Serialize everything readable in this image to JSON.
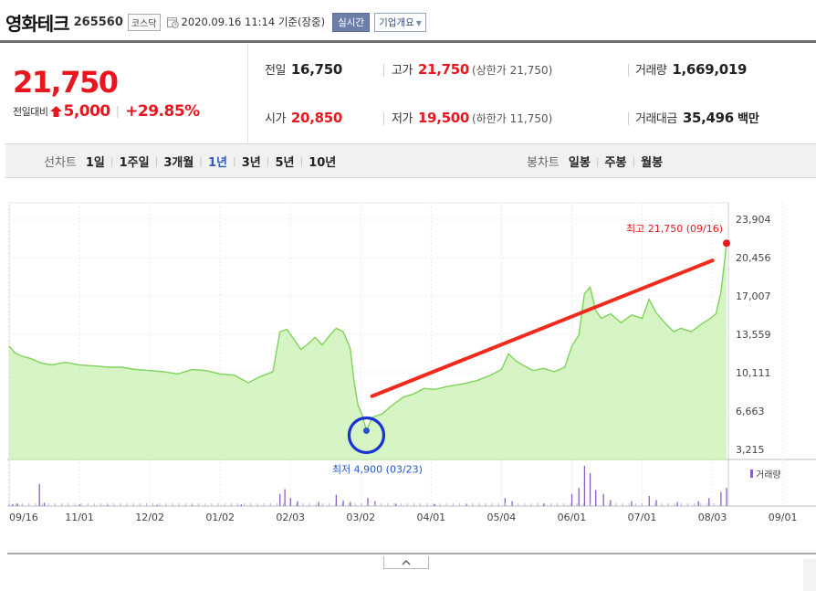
{
  "stock": {
    "name": "영화테크",
    "code": "265560",
    "market": "코스닥",
    "datetime": "2020.09.16 11:14",
    "basis": "기준(장중)",
    "realtime_label": "실시간",
    "overview_label": "기업개요"
  },
  "price": {
    "current": "21,750",
    "change_label": "전일대비",
    "change_value": "5,000",
    "change_pct": "+29.85%"
  },
  "details": {
    "prev_label": "전일",
    "prev_value": "16,750",
    "high_label": "고가",
    "high_value": "21,750",
    "high_note": "(상한가 21,750)",
    "volume_label": "거래량",
    "volume_value": "1,669,019",
    "open_label": "시가",
    "open_value": "20,850",
    "low_label": "저가",
    "low_value": "19,500",
    "low_note": "(하한가 11,750)",
    "amount_label": "거래대금",
    "amount_value": "35,496",
    "amount_unit": "백만"
  },
  "line_tabs": {
    "title": "선차트",
    "items": [
      "1일",
      "1주일",
      "3개월",
      "1년",
      "3년",
      "5년",
      "10년"
    ],
    "active": "1년"
  },
  "candle_tabs": {
    "title": "봉차트",
    "items": [
      "일봉",
      "주봉",
      "월봉"
    ]
  },
  "colors": {
    "up": "#e8171f",
    "area_line": "#7ed35a",
    "area_fill": "#c9f0b0",
    "link_blue": "#3359c4",
    "highlight_circle": "#1733d6",
    "drawn_line": "#f02a1c"
  },
  "chart_data": {
    "type": "area",
    "y_ticks": [
      "23,904",
      "20,456",
      "17,007",
      "13,559",
      "10,111",
      "6,663",
      "3,215"
    ],
    "ylim": [
      3215,
      23904
    ],
    "x_ticks": [
      "09/16",
      "11/01",
      "12/02",
      "01/02",
      "02/03",
      "03/02",
      "04/01",
      "05/04",
      "06/01",
      "07/01",
      "08/03",
      "09/01"
    ],
    "max_annotation": "최고 21,750 (09/16)",
    "min_annotation": "최저 4,900 (03/23)",
    "volume_legend": "거래량",
    "price_series": [
      {
        "x": 0.0,
        "y": 12500
      },
      {
        "x": 0.08,
        "y": 11900
      },
      {
        "x": 0.18,
        "y": 11600
      },
      {
        "x": 0.3,
        "y": 11400
      },
      {
        "x": 0.45,
        "y": 11000
      },
      {
        "x": 0.6,
        "y": 10800
      },
      {
        "x": 0.8,
        "y": 11050
      },
      {
        "x": 1.0,
        "y": 10800
      },
      {
        "x": 1.25,
        "y": 10700
      },
      {
        "x": 1.4,
        "y": 10600
      },
      {
        "x": 1.6,
        "y": 10600
      },
      {
        "x": 1.8,
        "y": 10400
      },
      {
        "x": 2.0,
        "y": 10300
      },
      {
        "x": 2.2,
        "y": 10200
      },
      {
        "x": 2.4,
        "y": 10000
      },
      {
        "x": 2.6,
        "y": 10400
      },
      {
        "x": 2.8,
        "y": 10300
      },
      {
        "x": 3.0,
        "y": 10000
      },
      {
        "x": 3.2,
        "y": 9900
      },
      {
        "x": 3.4,
        "y": 9200
      },
      {
        "x": 3.55,
        "y": 9700
      },
      {
        "x": 3.75,
        "y": 10200
      },
      {
        "x": 3.85,
        "y": 13800
      },
      {
        "x": 3.95,
        "y": 14000
      },
      {
        "x": 4.05,
        "y": 13100
      },
      {
        "x": 4.15,
        "y": 12200
      },
      {
        "x": 4.25,
        "y": 12700
      },
      {
        "x": 4.35,
        "y": 13300
      },
      {
        "x": 4.45,
        "y": 12600
      },
      {
        "x": 4.55,
        "y": 13400
      },
      {
        "x": 4.65,
        "y": 14100
      },
      {
        "x": 4.75,
        "y": 13800
      },
      {
        "x": 4.85,
        "y": 12300
      },
      {
        "x": 4.9,
        "y": 9500
      },
      {
        "x": 4.96,
        "y": 7200
      },
      {
        "x": 5.02,
        "y": 6300
      },
      {
        "x": 5.08,
        "y": 4900
      },
      {
        "x": 5.16,
        "y": 6100
      },
      {
        "x": 5.3,
        "y": 6400
      },
      {
        "x": 5.45,
        "y": 7200
      },
      {
        "x": 5.6,
        "y": 7900
      },
      {
        "x": 5.75,
        "y": 8200
      },
      {
        "x": 5.9,
        "y": 8700
      },
      {
        "x": 6.05,
        "y": 8600
      },
      {
        "x": 6.25,
        "y": 8900
      },
      {
        "x": 6.45,
        "y": 9100
      },
      {
        "x": 6.65,
        "y": 9400
      },
      {
        "x": 6.85,
        "y": 9900
      },
      {
        "x": 7.0,
        "y": 10400
      },
      {
        "x": 7.1,
        "y": 11800
      },
      {
        "x": 7.2,
        "y": 11200
      },
      {
        "x": 7.3,
        "y": 10800
      },
      {
        "x": 7.45,
        "y": 10300
      },
      {
        "x": 7.6,
        "y": 10500
      },
      {
        "x": 7.75,
        "y": 10200
      },
      {
        "x": 7.9,
        "y": 10600
      },
      {
        "x": 8.0,
        "y": 12500
      },
      {
        "x": 8.1,
        "y": 13500
      },
      {
        "x": 8.18,
        "y": 17200
      },
      {
        "x": 8.26,
        "y": 17800
      },
      {
        "x": 8.34,
        "y": 15700
      },
      {
        "x": 8.42,
        "y": 15000
      },
      {
        "x": 8.55,
        "y": 15400
      },
      {
        "x": 8.7,
        "y": 14600
      },
      {
        "x": 8.85,
        "y": 15300
      },
      {
        "x": 9.0,
        "y": 15000
      },
      {
        "x": 9.1,
        "y": 16700
      },
      {
        "x": 9.2,
        "y": 15500
      },
      {
        "x": 9.35,
        "y": 14400
      },
      {
        "x": 9.45,
        "y": 13800
      },
      {
        "x": 9.55,
        "y": 14100
      },
      {
        "x": 9.7,
        "y": 13800
      },
      {
        "x": 9.85,
        "y": 14500
      },
      {
        "x": 9.95,
        "y": 14900
      },
      {
        "x": 10.05,
        "y": 15400
      },
      {
        "x": 10.12,
        "y": 17300
      },
      {
        "x": 10.2,
        "y": 21750
      }
    ],
    "volume_series": [
      {
        "x": 0.05,
        "y": 0.05
      },
      {
        "x": 0.12,
        "y": 0.06
      },
      {
        "x": 0.43,
        "y": 0.55
      },
      {
        "x": 0.5,
        "y": 0.08
      },
      {
        "x": 1.0,
        "y": 0.04
      },
      {
        "x": 1.4,
        "y": 0.03
      },
      {
        "x": 2.1,
        "y": 0.03
      },
      {
        "x": 2.6,
        "y": 0.03
      },
      {
        "x": 3.3,
        "y": 0.04
      },
      {
        "x": 3.85,
        "y": 0.3
      },
      {
        "x": 3.92,
        "y": 0.42
      },
      {
        "x": 4.0,
        "y": 0.2
      },
      {
        "x": 4.1,
        "y": 0.12
      },
      {
        "x": 4.4,
        "y": 0.1
      },
      {
        "x": 4.65,
        "y": 0.28
      },
      {
        "x": 4.75,
        "y": 0.14
      },
      {
        "x": 4.85,
        "y": 0.1
      },
      {
        "x": 5.1,
        "y": 0.2
      },
      {
        "x": 5.2,
        "y": 0.12
      },
      {
        "x": 5.5,
        "y": 0.06
      },
      {
        "x": 6.05,
        "y": 0.05
      },
      {
        "x": 6.5,
        "y": 0.05
      },
      {
        "x": 7.05,
        "y": 0.2
      },
      {
        "x": 7.15,
        "y": 0.12
      },
      {
        "x": 7.6,
        "y": 0.06
      },
      {
        "x": 8.0,
        "y": 0.3
      },
      {
        "x": 8.1,
        "y": 0.45
      },
      {
        "x": 8.18,
        "y": 1.0
      },
      {
        "x": 8.26,
        "y": 0.82
      },
      {
        "x": 8.34,
        "y": 0.4
      },
      {
        "x": 8.45,
        "y": 0.3
      },
      {
        "x": 8.55,
        "y": 0.15
      },
      {
        "x": 8.85,
        "y": 0.12
      },
      {
        "x": 9.1,
        "y": 0.25
      },
      {
        "x": 9.2,
        "y": 0.15
      },
      {
        "x": 9.5,
        "y": 0.1
      },
      {
        "x": 9.8,
        "y": 0.12
      },
      {
        "x": 9.95,
        "y": 0.2
      },
      {
        "x": 10.12,
        "y": 0.35
      },
      {
        "x": 10.2,
        "y": 0.45
      }
    ],
    "min_point": {
      "x": 5.08,
      "y": 4900
    },
    "max_point": {
      "x": 10.2,
      "y": 21750
    },
    "trend_line": [
      {
        "x": 5.16,
        "y": 8000
      },
      {
        "x": 10.0,
        "y": 20200
      }
    ]
  }
}
